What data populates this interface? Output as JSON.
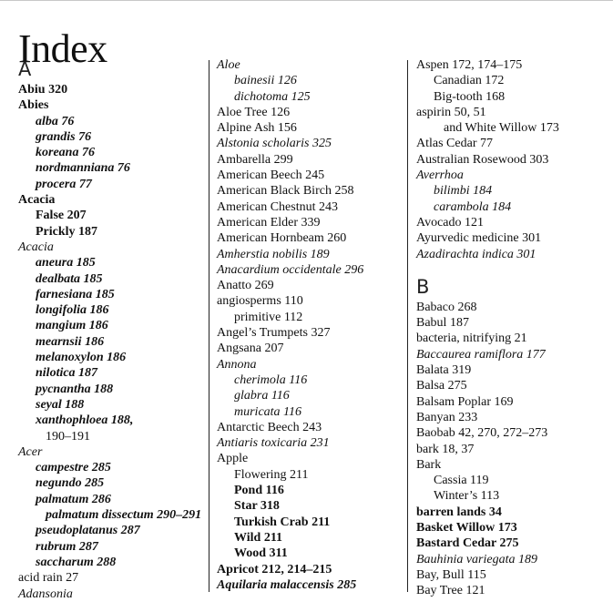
{
  "title": "Index",
  "columns": [
    [
      {
        "type": "letter",
        "text": "A"
      },
      {
        "text": "Abiu 320",
        "level": 0,
        "style": "bold"
      },
      {
        "text": "Abies",
        "level": 0,
        "style": "bold"
      },
      {
        "text": "alba 76",
        "level": 1,
        "style": "italic-bold"
      },
      {
        "text": "grandis 76",
        "level": 1,
        "style": "italic-bold"
      },
      {
        "text": "koreana 76",
        "level": 1,
        "style": "italic-bold"
      },
      {
        "text": "nordmanniana 76",
        "level": 1,
        "style": "italic-bold"
      },
      {
        "text": "procera 77",
        "level": 1,
        "style": "italic-bold"
      },
      {
        "text": "Acacia",
        "level": 0,
        "style": "bold"
      },
      {
        "text": "False 207",
        "level": 1,
        "style": "bold"
      },
      {
        "text": "Prickly 187",
        "level": 1,
        "style": "bold"
      },
      {
        "text": "Acacia",
        "level": 0,
        "style": "italic"
      },
      {
        "text": "aneura 185",
        "level": 1,
        "style": "italic-bold"
      },
      {
        "text": "dealbata 185",
        "level": 1,
        "style": "italic-bold"
      },
      {
        "text": "farnesiana 185",
        "level": 1,
        "style": "italic-bold"
      },
      {
        "text": "longifolia 186",
        "level": 1,
        "style": "italic-bold"
      },
      {
        "text": "mangium 186",
        "level": 1,
        "style": "italic-bold"
      },
      {
        "text": "mearnsii 186",
        "level": 1,
        "style": "italic-bold"
      },
      {
        "text": "melanoxylon 186",
        "level": 1,
        "style": "italic-bold"
      },
      {
        "text": "nilotica 187",
        "level": 1,
        "style": "italic-bold"
      },
      {
        "text": "pycnantha 188",
        "level": 1,
        "style": "italic-bold"
      },
      {
        "text": "seyal 188",
        "level": 1,
        "style": "italic-bold"
      },
      {
        "text": "xanthophloea 188,",
        "level": 1,
        "style": "italic-bold"
      },
      {
        "text": "190–191",
        "level": 2,
        "style": "plain"
      },
      {
        "text": "Acer",
        "level": 0,
        "style": "italic"
      },
      {
        "text": "campestre 285",
        "level": 1,
        "style": "italic-bold"
      },
      {
        "text": "negundo 285",
        "level": 1,
        "style": "italic-bold"
      },
      {
        "text": "palmatum 286",
        "level": 1,
        "style": "italic-bold"
      },
      {
        "text": "palmatum dissectum 290–291",
        "level": 2,
        "style": "italic-bold"
      },
      {
        "text": "pseudoplatanus 287",
        "level": 1,
        "style": "italic-bold"
      },
      {
        "text": "rubrum 287",
        "level": 1,
        "style": "italic-bold"
      },
      {
        "text": "saccharum 288",
        "level": 1,
        "style": "italic-bold"
      },
      {
        "text": "acid rain 27",
        "level": 0,
        "style": "plain"
      },
      {
        "text": "Adansonia",
        "level": 0,
        "style": "italic"
      }
    ],
    [
      {
        "text": "Aloe",
        "level": 0,
        "style": "italic"
      },
      {
        "text": "bainesii 126",
        "level": 1,
        "style": "italic"
      },
      {
        "text": "dichotoma 125",
        "level": 1,
        "style": "italic"
      },
      {
        "text": "Aloe Tree 126",
        "level": 0,
        "style": "plain"
      },
      {
        "text": "Alpine Ash 156",
        "level": 0,
        "style": "plain"
      },
      {
        "text": "Alstonia scholaris 325",
        "level": 0,
        "style": "italic"
      },
      {
        "text": "Ambarella 299",
        "level": 0,
        "style": "plain"
      },
      {
        "text": "American Beech 245",
        "level": 0,
        "style": "plain"
      },
      {
        "text": "American Black Birch 258",
        "level": 0,
        "style": "plain"
      },
      {
        "text": "American Chestnut 243",
        "level": 0,
        "style": "plain"
      },
      {
        "text": "American Elder 339",
        "level": 0,
        "style": "plain"
      },
      {
        "text": "American Hornbeam 260",
        "level": 0,
        "style": "plain"
      },
      {
        "text": "Amherstia nobilis 189",
        "level": 0,
        "style": "italic"
      },
      {
        "text": "Anacardium occidentale 296",
        "level": 0,
        "style": "italic"
      },
      {
        "text": "Anatto 269",
        "level": 0,
        "style": "plain"
      },
      {
        "text": "angiosperms 110",
        "level": 0,
        "style": "plain"
      },
      {
        "text": "primitive 112",
        "level": 1,
        "style": "plain"
      },
      {
        "text": "Angel’s Trumpets 327",
        "level": 0,
        "style": "plain"
      },
      {
        "text": "Angsana 207",
        "level": 0,
        "style": "plain"
      },
      {
        "text": "Annona",
        "level": 0,
        "style": "italic"
      },
      {
        "text": "cherimola 116",
        "level": 1,
        "style": "italic"
      },
      {
        "text": "glabra 116",
        "level": 1,
        "style": "italic"
      },
      {
        "text": "muricata 116",
        "level": 1,
        "style": "italic"
      },
      {
        "text": "Antarctic Beech 243",
        "level": 0,
        "style": "plain"
      },
      {
        "text": "Antiaris toxicaria 231",
        "level": 0,
        "style": "italic"
      },
      {
        "text": "Apple",
        "level": 0,
        "style": "plain"
      },
      {
        "text": "Flowering 211",
        "level": 1,
        "style": "plain"
      },
      {
        "text": "Pond 116",
        "level": 1,
        "style": "bold"
      },
      {
        "text": "Star 318",
        "level": 1,
        "style": "bold"
      },
      {
        "text": "Turkish Crab 211",
        "level": 1,
        "style": "bold"
      },
      {
        "text": "Wild 211",
        "level": 1,
        "style": "bold"
      },
      {
        "text": "Wood 311",
        "level": 1,
        "style": "bold"
      },
      {
        "text": "Apricot 212, 214–215",
        "level": 0,
        "style": "bold"
      },
      {
        "text": "Aquilaria malaccensis 285",
        "level": 0,
        "style": "italic-bold"
      }
    ],
    [
      {
        "text": "Aspen 172, 174–175",
        "level": 0,
        "style": "plain"
      },
      {
        "text": "Canadian 172",
        "level": 1,
        "style": "plain"
      },
      {
        "text": "Big-tooth 168",
        "level": 1,
        "style": "plain"
      },
      {
        "text": "aspirin 50, 51",
        "level": 0,
        "style": "plain"
      },
      {
        "text": "and White Willow 173",
        "level": 2,
        "style": "plain"
      },
      {
        "text": "Atlas Cedar 77",
        "level": 0,
        "style": "plain"
      },
      {
        "text": "Australian Rosewood 303",
        "level": 0,
        "style": "plain"
      },
      {
        "text": "Averrhoa",
        "level": 0,
        "style": "italic"
      },
      {
        "text": "bilimbi 184",
        "level": 1,
        "style": "italic"
      },
      {
        "text": "carambola 184",
        "level": 1,
        "style": "italic"
      },
      {
        "text": "Avocado 121",
        "level": 0,
        "style": "plain"
      },
      {
        "text": "Ayurvedic medicine 301",
        "level": 0,
        "style": "plain"
      },
      {
        "text": "Azadirachta indica 301",
        "level": 0,
        "style": "italic"
      },
      {
        "type": "spacer"
      },
      {
        "type": "letter",
        "text": "B"
      },
      {
        "text": "Babaco 268",
        "level": 0,
        "style": "plain"
      },
      {
        "text": "Babul 187",
        "level": 0,
        "style": "plain"
      },
      {
        "text": "bacteria, nitrifying 21",
        "level": 0,
        "style": "plain"
      },
      {
        "text": "Baccaurea ramiflora 177",
        "level": 0,
        "style": "italic"
      },
      {
        "text": "Balata 319",
        "level": 0,
        "style": "plain"
      },
      {
        "text": "Balsa 275",
        "level": 0,
        "style": "plain"
      },
      {
        "text": "Balsam Poplar 169",
        "level": 0,
        "style": "plain"
      },
      {
        "text": "Banyan 233",
        "level": 0,
        "style": "plain"
      },
      {
        "text": "Baobab 42, 270, 272–273",
        "level": 0,
        "style": "plain"
      },
      {
        "text": "bark 18, 37",
        "level": 0,
        "style": "plain"
      },
      {
        "text": "Bark",
        "level": 0,
        "style": "plain"
      },
      {
        "text": "Cassia 119",
        "level": 1,
        "style": "plain"
      },
      {
        "text": "Winter’s 113",
        "level": 1,
        "style": "plain"
      },
      {
        "text": "barren lands 34",
        "level": 0,
        "style": "bold"
      },
      {
        "text": "Basket Willow 173",
        "level": 0,
        "style": "bold"
      },
      {
        "text": "Bastard Cedar 275",
        "level": 0,
        "style": "bold"
      },
      {
        "text": "Bauhinia variegata 189",
        "level": 0,
        "style": "italic"
      },
      {
        "text": "Bay, Bull 115",
        "level": 0,
        "style": "plain"
      },
      {
        "text": "Bay Tree 121",
        "level": 0,
        "style": "plain"
      }
    ]
  ]
}
